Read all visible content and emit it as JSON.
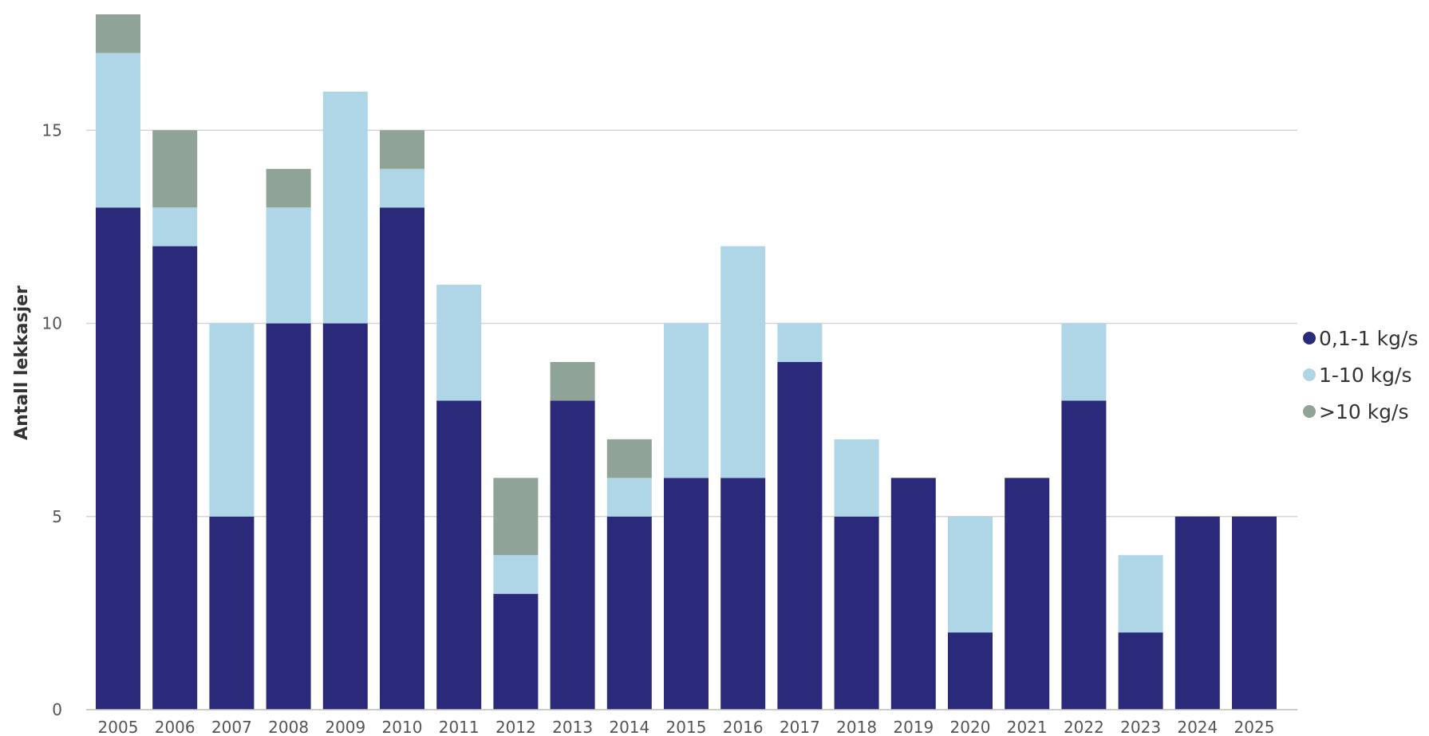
{
  "chart_data": {
    "type": "bar",
    "stacked": true,
    "title": "",
    "xlabel": "",
    "ylabel": "Antall lekkasjer",
    "ylim": [
      0,
      18
    ],
    "yticks": [
      0,
      5,
      10,
      15
    ],
    "grid": true,
    "legend_position": "right",
    "categories": [
      "2005",
      "2006",
      "2007",
      "2008",
      "2009",
      "2010",
      "2011",
      "2012",
      "2013",
      "2014",
      "2015",
      "2016",
      "2017",
      "2018",
      "2019",
      "2020",
      "2021",
      "2022",
      "2023",
      "2024",
      "2025"
    ],
    "series": [
      {
        "name": "0,1-1 kg/s",
        "color": "#2b2a7a",
        "values": [
          13,
          12,
          5,
          10,
          10,
          13,
          8,
          3,
          8,
          5,
          6,
          6,
          9,
          5,
          6,
          2,
          6,
          8,
          2,
          5,
          5
        ]
      },
      {
        "name": "1-10 kg/s",
        "color": "#aed6e6",
        "values": [
          4,
          1,
          5,
          3,
          6,
          1,
          3,
          1,
          0,
          1,
          4,
          6,
          1,
          2,
          0,
          3,
          0,
          2,
          2,
          0,
          0
        ]
      },
      {
        "name": ">10 kg/s",
        "color": "#8fa396",
        "values": [
          1,
          2,
          0,
          1,
          0,
          1,
          0,
          2,
          1,
          1,
          0,
          0,
          0,
          0,
          0,
          0,
          0,
          0,
          0,
          0,
          0
        ]
      }
    ]
  }
}
